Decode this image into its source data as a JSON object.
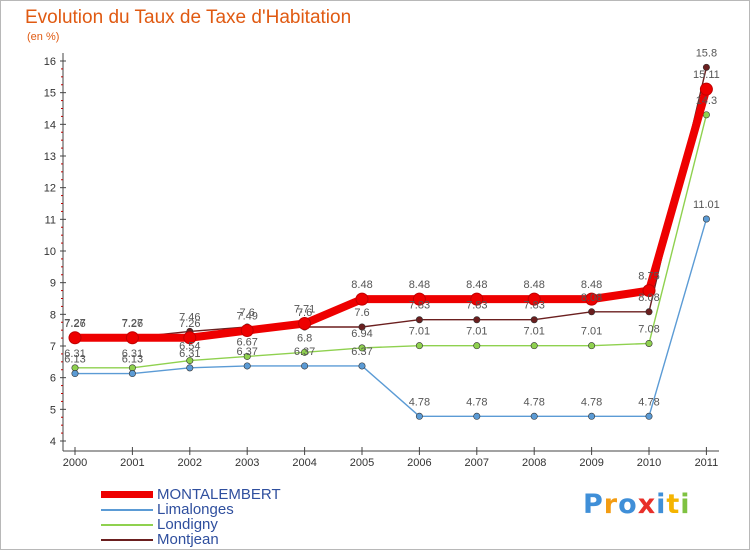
{
  "chart_data": {
    "type": "line",
    "title": "Evolution du Taux de Taxe d'Habitation",
    "ylabel": "(en %)",
    "xlabel": "",
    "ylim": [
      4,
      16
    ],
    "yticks": [
      "4",
      "5",
      "6",
      "7",
      "8",
      "9",
      "10",
      "11",
      "12",
      "13",
      "14",
      "15",
      "16"
    ],
    "categories": [
      "2000",
      "2001",
      "2002",
      "2003",
      "2004",
      "2005",
      "2006",
      "2007",
      "2008",
      "2009",
      "2010",
      "2011"
    ],
    "grid": false,
    "series": [
      {
        "name": "MONTALEMBERT",
        "color": "#ee0000",
        "values": [
          7.26,
          7.26,
          7.26,
          7.49,
          7.71,
          8.48,
          8.48,
          8.48,
          8.48,
          8.48,
          8.75,
          15.11
        ],
        "labels": [
          "7.26",
          "7.26",
          "7.26",
          "7.49",
          "7.71",
          "8.48",
          "8.48",
          "8.48",
          "8.48",
          "8.48",
          "8.75",
          "15.11"
        ]
      },
      {
        "name": "Limalonges",
        "color": "#5b9bd5",
        "values": [
          6.13,
          6.13,
          6.31,
          6.37,
          6.37,
          6.37,
          4.78,
          4.78,
          4.78,
          4.78,
          4.78,
          11.01
        ],
        "labels": [
          "6.13",
          "6.13",
          "6.31",
          "6.37",
          "6.37",
          "6.37",
          "4.78",
          "4.78",
          "4.78",
          "4.78",
          "4.78",
          "11.01"
        ]
      },
      {
        "name": "Londigny",
        "color": "#8fd14f",
        "values": [
          6.31,
          6.31,
          6.54,
          6.67,
          6.8,
          6.94,
          7.01,
          7.01,
          7.01,
          7.01,
          7.08,
          14.3
        ],
        "labels": [
          "6.31",
          "6.31",
          "6.54",
          "6.67",
          "6.8",
          "6.94",
          "7.01",
          "7.01",
          "7.01",
          "7.01",
          "7.08",
          "14.3"
        ]
      },
      {
        "name": "Montjean",
        "color": "#6b1f1f",
        "values": [
          7.27,
          7.27,
          7.46,
          7.6,
          7.6,
          7.6,
          7.83,
          7.83,
          7.83,
          8.08,
          8.08,
          15.8
        ],
        "labels": [
          "7.27",
          "7.27",
          "7.46",
          "7.6",
          "7.6",
          "7.6",
          "7.83",
          "7.83",
          "7.83",
          "8.08",
          "8.08",
          "15.8"
        ]
      }
    ]
  },
  "logo": {
    "letters": [
      "P",
      "r",
      "o",
      "x",
      "i",
      "t",
      "i"
    ],
    "colors": [
      "#3f8fd8",
      "#f39c12",
      "#3f8fd8",
      "#e8302a",
      "#3f8fd8",
      "#f5b400",
      "#7fc241"
    ]
  }
}
